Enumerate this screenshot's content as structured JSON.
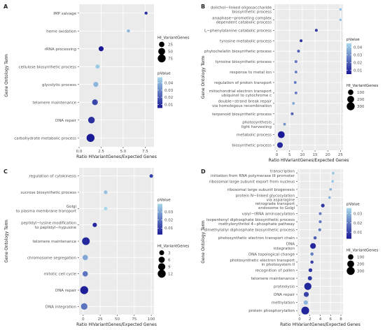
{
  "colors": {
    "panel": "#ebebeb",
    "grid": "#ffffff",
    "low": "#1a1a96",
    "high": "#a6d8ec",
    "text": "#4d4d4d"
  },
  "chart_data": [
    {
      "panel": "A",
      "type": "scatter",
      "xlabel": "Ratio HIVariantGenes/Expected Genes",
      "ylabel": "Gene Ontology Term",
      "xlim": [
        0,
        8.5
      ],
      "xticks": [
        0,
        2.5,
        5,
        7.5
      ],
      "xticklabels": [
        "0.0",
        "2.5",
        "5.0",
        "7.5"
      ],
      "categories": [
        [
          "IMP salvage"
        ],
        [
          "heme oxidation"
        ],
        [
          "rRNA processing"
        ],
        [
          "cellulose biosynthetic process"
        ],
        [
          "glycolytic process"
        ],
        [
          "telomere maintenance"
        ],
        [
          "DNA repair"
        ],
        [
          "carbohydrate metabolic process"
        ]
      ],
      "x": [
        7.6,
        5.6,
        2.5,
        2.1,
        1.9,
        1.8,
        1.4,
        1.3
      ],
      "size": [
        3,
        3,
        20,
        12,
        20,
        30,
        45,
        75
      ],
      "pvalue": [
        0.01,
        0.04,
        0.005,
        0.045,
        0.04,
        0.015,
        0.01,
        0.005
      ],
      "size_legend": {
        "title": "HI_VariantGenes",
        "values": [
          25,
          50,
          75
        ],
        "labels": [
          "25",
          "50",
          "75"
        ]
      },
      "color_legend": {
        "title": "pValue",
        "min": 0.005,
        "max": 0.048,
        "ticks": [
          0.04,
          0.03,
          0.02,
          0.01
        ],
        "labels": [
          "0.04",
          "0.03",
          "0.02",
          "0.01"
        ]
      }
    },
    {
      "panel": "B",
      "type": "scatter",
      "xlabel": "Ratio HIVariantGenes/Expected Genes",
      "ylabel": "Gene Ontology Term",
      "xlim": [
        -1,
        26
      ],
      "xticks": [
        0,
        5,
        10,
        15,
        20,
        25
      ],
      "xticklabels": [
        "0",
        "5",
        "10",
        "15",
        "20",
        "25"
      ],
      "categories": [
        [
          "dolichol−linked oligosaccharide",
          "biosynthetic process"
        ],
        [
          "anaphase−promoting complex",
          "dependent catabolic process"
        ],
        [
          "L−phenylalanine catabolic process"
        ],
        [
          "tyrosine metabolic process"
        ],
        [
          "phytochelatin biosynthetic process"
        ],
        [
          "tyrosine biosynthetic process"
        ],
        [
          "response to metal ion"
        ],
        [
          "regulation of proton transport"
        ],
        [
          "mitochondrial electron transport",
          "ubiquinol to cytochrome c"
        ],
        [
          "double−strand break repair",
          "via homologous recombination"
        ],
        [
          "terpenoid biosynthetic process"
        ],
        [
          "photosynthesis",
          "light harvesting"
        ],
        [
          "metabolic process"
        ],
        [
          "biosynthetic process"
        ]
      ],
      "x": [
        25,
        25,
        15.5,
        9.5,
        8.5,
        7.5,
        7.5,
        7.2,
        7.5,
        6.5,
        6,
        3,
        1.7,
        1.2
      ],
      "size": [
        3,
        3,
        8,
        8,
        8,
        8,
        6,
        6,
        6,
        6,
        8,
        6,
        200,
        120
      ],
      "pvalue": [
        0.04,
        0.04,
        0.012,
        0.01,
        0.02,
        0.025,
        0.025,
        0.025,
        0.025,
        0.035,
        0.02,
        0.03,
        0.005,
        0.008
      ],
      "size_legend": {
        "title": "HI_VariantGenes",
        "values": [
          100,
          200,
          300
        ],
        "labels": [
          "100",
          "200",
          "300"
        ]
      },
      "color_legend": {
        "title": "pValue",
        "min": 0.005,
        "max": 0.045,
        "ticks": [
          0.04,
          0.03,
          0.02,
          0.01
        ],
        "labels": [
          "0.04",
          "0.03",
          "0.02",
          "0.01"
        ]
      }
    },
    {
      "panel": "C",
      "type": "scatter",
      "xlabel": "Ratio HIVariantGenes/Expected Genes",
      "ylabel": "Gene Ontology Term",
      "xlim": [
        -6,
        104
      ],
      "xticks": [
        0,
        25,
        50,
        75,
        100
      ],
      "xticklabels": [
        "0",
        "25",
        "50",
        "75",
        "100"
      ],
      "categories": [
        [
          "regulation of cytokinesis"
        ],
        [
          "sucrose biosynthetic process"
        ],
        [
          "Golgi",
          "to plasma membrane transport"
        ],
        [
          "peptidyl−lysine modification",
          "to peptidyl−hypusine"
        ],
        [
          "telomere maintenance"
        ],
        [
          "chromosome segregation"
        ],
        [
          "mitotic cell cycle"
        ],
        [
          "DNA repair"
        ],
        [
          "DNA integration"
        ]
      ],
      "x": [
        100,
        33,
        33,
        17,
        4,
        3,
        3,
        1.5,
        1.5
      ],
      "size": [
        1,
        1,
        1,
        2,
        11,
        4,
        4,
        12,
        7
      ],
      "pvalue": [
        0.01,
        0.035,
        0.04,
        0.005,
        0.005,
        0.03,
        0.02,
        0.003,
        0.02
      ],
      "size_legend": {
        "title": "HI_VariantGenes",
        "values": [
          3,
          6,
          9,
          12
        ],
        "labels": [
          "3",
          "6",
          "9",
          "12"
        ]
      },
      "color_legend": {
        "title": "pValue",
        "min": 0.002,
        "max": 0.04,
        "ticks": [
          0.03,
          0.02,
          0.01
        ],
        "labels": [
          "0.03",
          "0.02",
          "0.01"
        ]
      }
    },
    {
      "panel": "D",
      "type": "scatter",
      "xlabel": "Ratio HIVariantGenes/Expected Genes",
      "ylabel": "Gene Ontology Term",
      "xlim": [
        -0.4,
        8.4
      ],
      "xticks": [
        0,
        2,
        4,
        6,
        8
      ],
      "xticklabels": [
        "0",
        "2",
        "4",
        "6",
        "8"
      ],
      "categories": [
        [
          "transcription",
          "initiation from RNA polymerase III promoter"
        ],
        [
          "ribosomal large subunit export from nucleus"
        ],
        [
          "ribosomal large subunit biogenesis"
        ],
        [
          "protein N−linked glycosylation",
          "via asparagine"
        ],
        [
          "retrograde transport",
          "endosome to Golgi"
        ],
        [
          "valyl−tRNA aminoacylation"
        ],
        [
          "isopentenyl diphosphate biosynthetic process",
          "methylerythritol 4−phosphate pathway"
        ],
        [
          "dimethylallyl diphosphate biosynthetic process"
        ],
        [
          "photosynthetic electron transport chain"
        ],
        [
          "DNA",
          "integration"
        ],
        [
          "DNA topological change"
        ],
        [
          "photosynthetic electron transport",
          "in photosystem II"
        ],
        [
          "recognition of pollen"
        ],
        [
          "telomere maintenance"
        ],
        [
          "proteolysis"
        ],
        [
          "DNA repair"
        ],
        [
          "methylation"
        ],
        [
          "protein phosphorylation"
        ]
      ],
      "x": [
        6.5,
        6.4,
        6.0,
        5.8,
        4.5,
        4.0,
        4.0,
        3.9,
        3.0,
        2.6,
        2.4,
        2.4,
        2.1,
        2.0,
        1.6,
        1.3,
        1.2,
        1.1
      ],
      "size": [
        5,
        5,
        5,
        5,
        25,
        10,
        10,
        10,
        15,
        120,
        15,
        15,
        30,
        45,
        230,
        80,
        50,
        280
      ],
      "pvalue": [
        0.033,
        0.033,
        0.03,
        0.03,
        0.008,
        0.02,
        0.02,
        0.02,
        0.015,
        0.005,
        0.02,
        0.01,
        0.008,
        0.008,
        0.005,
        0.01,
        0.03,
        0.005
      ],
      "size_legend": {
        "title": "HI_VariantGenes",
        "values": [
          100,
          200,
          300
        ],
        "labels": [
          "100",
          "200",
          "300"
        ]
      },
      "color_legend": {
        "title": "pValue",
        "min": 0.003,
        "max": 0.036,
        "ticks": [
          0.03,
          0.02,
          0.01
        ],
        "labels": [
          "0.03",
          "0.02",
          "0.01"
        ]
      }
    }
  ]
}
